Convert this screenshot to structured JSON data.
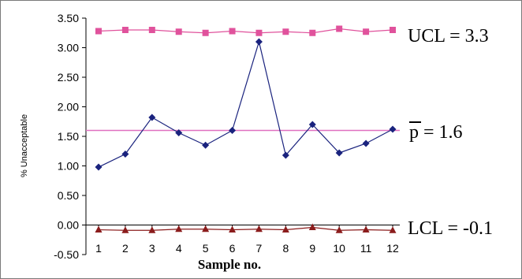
{
  "chart_data": {
    "type": "line",
    "xlabel": "Sample no.",
    "ylabel": "% Unacceptable",
    "categories": [
      "1",
      "2",
      "3",
      "4",
      "5",
      "6",
      "7",
      "8",
      "9",
      "10",
      "11",
      "12"
    ],
    "ylim": [
      -0.5,
      3.5
    ],
    "y_ticks": [
      "3.50",
      "3.00",
      "2.50",
      "2.00",
      "1.50",
      "1.00",
      "0.50",
      "0.00",
      "-0.50"
    ],
    "grid": false,
    "series": [
      {
        "role": "proportion",
        "color": "#1a237e",
        "marker": "diamond",
        "values": [
          0.98,
          1.2,
          1.82,
          1.56,
          1.35,
          1.6,
          3.1,
          1.18,
          1.7,
          1.22,
          1.38,
          1.62
        ]
      },
      {
        "role": "ucl",
        "color": "#e0529c",
        "marker": "square",
        "values": [
          3.28,
          3.3,
          3.3,
          3.27,
          3.25,
          3.28,
          3.25,
          3.27,
          3.25,
          3.32,
          3.27,
          3.3
        ]
      },
      {
        "role": "lcl",
        "color": "#8b1c1c",
        "marker": "triangle",
        "values": [
          -0.08,
          -0.09,
          -0.09,
          -0.07,
          -0.07,
          -0.08,
          -0.07,
          -0.08,
          -0.04,
          -0.09,
          -0.08,
          -0.09
        ]
      }
    ],
    "center_line": {
      "value": 1.6,
      "color": "#e070c0"
    },
    "limit_labels": {
      "ucl": "UCL = 3.3",
      "p_symbol": "p",
      "p_rest": " = 1.6",
      "lcl": "LCL = -0.1"
    }
  }
}
